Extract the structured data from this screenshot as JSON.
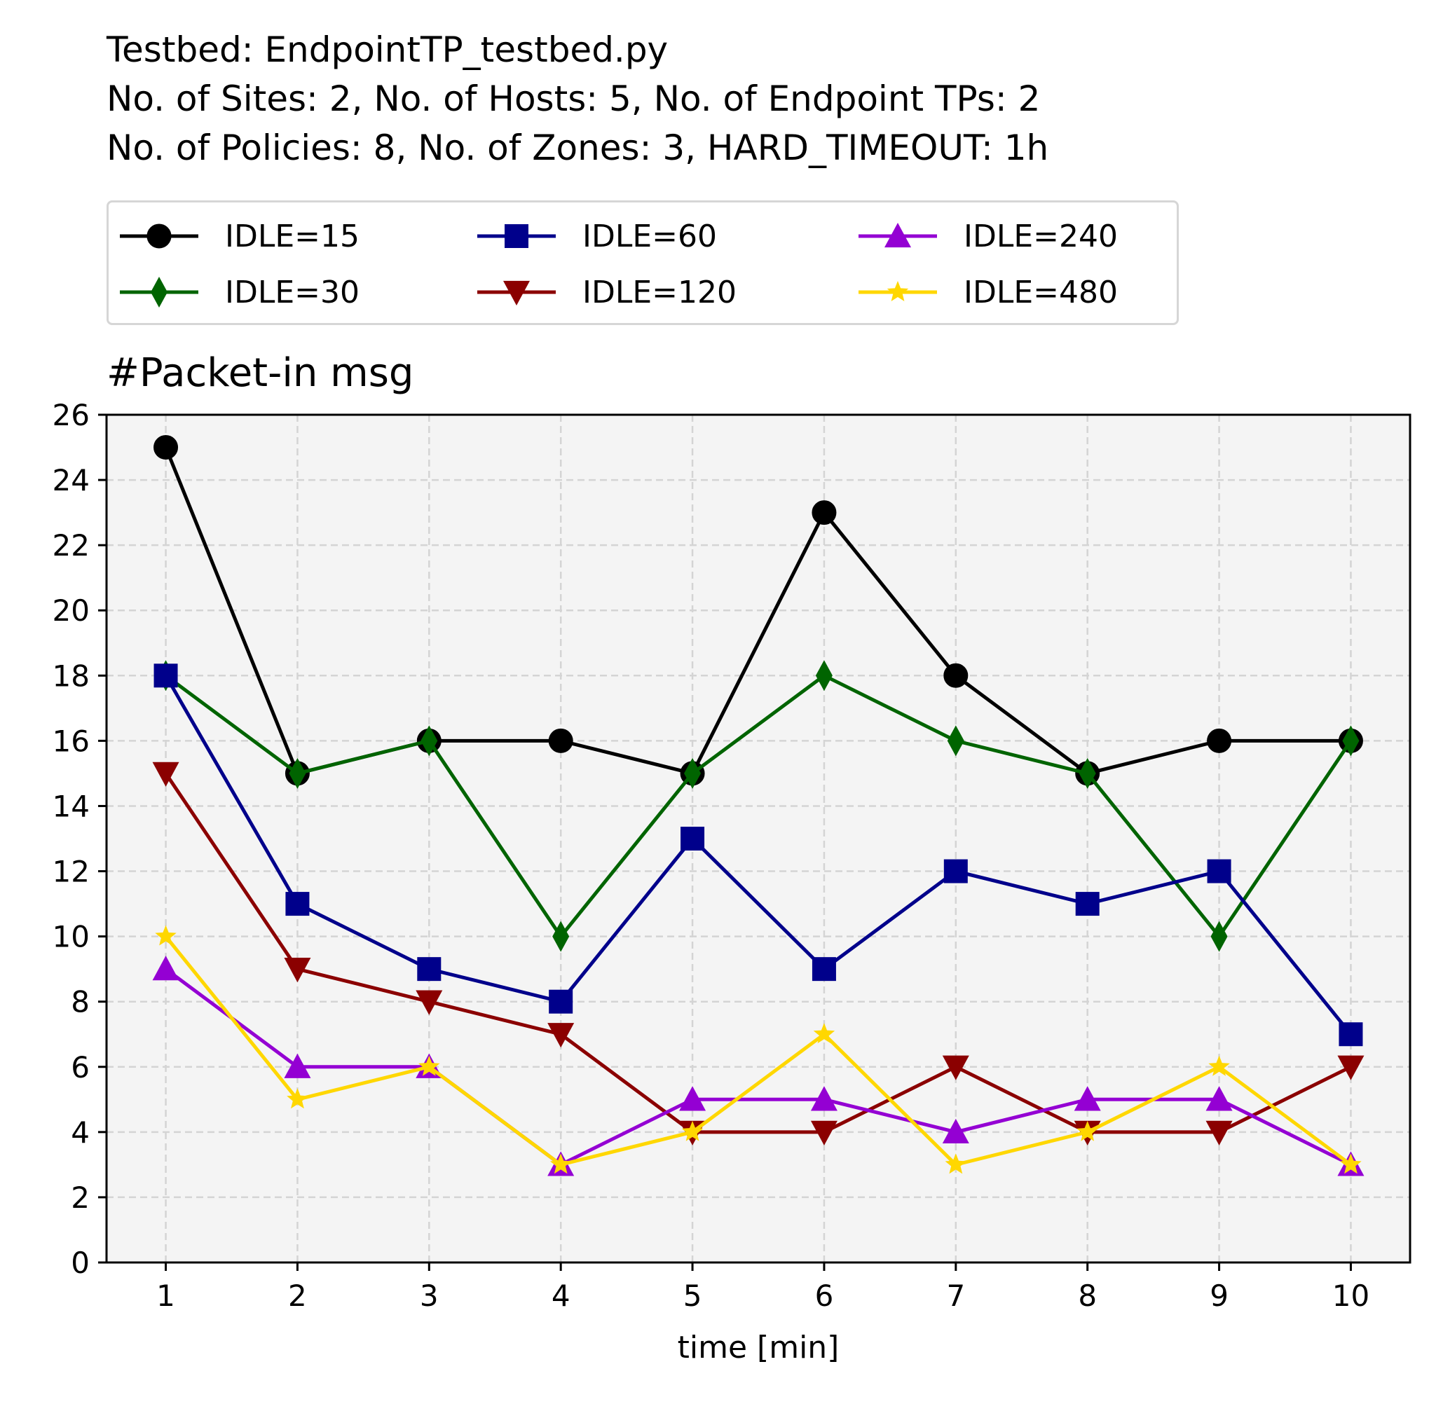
{
  "title_lines": [
    "Testbed: EndpointTP_testbed.py",
    "No. of Sites: 2, No. of Hosts: 5, No. of Endpoint TPs: 2",
    "No. of Policies: 8, No. of Zones: 3, HARD_TIMEOUT: 1h"
  ],
  "chart_data": {
    "type": "line",
    "title": "#Packet-in msg",
    "xlabel": "time [min]",
    "ylabel": "",
    "x": [
      1,
      2,
      3,
      4,
      5,
      6,
      7,
      8,
      9,
      10
    ],
    "xlim": [
      0.55,
      10.45
    ],
    "ylim": [
      0,
      26
    ],
    "yticks": [
      0,
      2,
      4,
      6,
      8,
      10,
      12,
      14,
      16,
      18,
      20,
      22,
      24,
      26
    ],
    "grid": true,
    "legend_position": "above plot, 3 columns",
    "series": [
      {
        "name": "IDLE=15",
        "color": "#000000",
        "marker": "circle",
        "values": [
          25,
          15,
          16,
          16,
          15,
          23,
          18,
          15,
          16,
          16
        ]
      },
      {
        "name": "IDLE=30",
        "color": "#006400",
        "marker": "thin-diamond",
        "values": [
          18,
          15,
          16,
          10,
          15,
          18,
          16,
          15,
          10,
          16
        ]
      },
      {
        "name": "IDLE=60",
        "color": "#00008b",
        "marker": "square",
        "values": [
          18,
          11,
          9,
          8,
          13,
          9,
          12,
          11,
          12,
          7
        ]
      },
      {
        "name": "IDLE=120",
        "color": "#8b0000",
        "marker": "triangle-down",
        "values": [
          15,
          9,
          8,
          7,
          4,
          4,
          6,
          4,
          4,
          6
        ]
      },
      {
        "name": "IDLE=240",
        "color": "#9400d3",
        "marker": "triangle-up",
        "values": [
          9,
          6,
          6,
          3,
          5,
          5,
          4,
          5,
          5,
          3
        ]
      },
      {
        "name": "IDLE=480",
        "color": "#ffd700",
        "marker": "star",
        "values": [
          10,
          5,
          6,
          3,
          4,
          7,
          3,
          4,
          6,
          3
        ]
      }
    ]
  }
}
